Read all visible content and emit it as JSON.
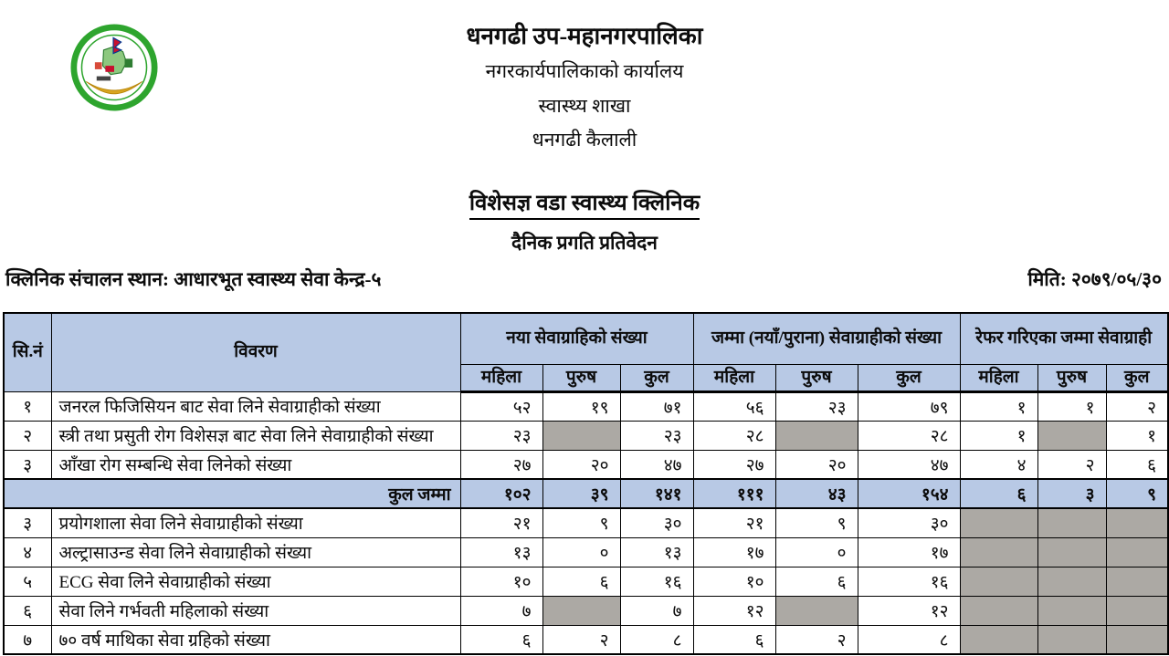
{
  "letterhead": {
    "org_name": "धनगढी उप-महानगरपालिका",
    "office_line": "नगरकार्यपालिकाको कार्यालय",
    "branch_line": "स्वास्थ्य शाखा",
    "place_line": "धनगढी कैलाली",
    "logo": "dhangadhi-sub-metropolitan-city-seal"
  },
  "report": {
    "title": "विशेसज्ञ वडा स्वास्थ्य क्लिनिक",
    "subtitle": "दैनिक प्रगति प्रतिवेदन",
    "clinic_location": "क्लिनिक संचालन स्थान: आधारभूत स्वास्थ्य सेवा केन्द्र-५",
    "date": "मिति: २०७९/०५/३०"
  },
  "table": {
    "colors": {
      "header_bg": "#b8c9e5",
      "total_row_bg": "#b8c9e5",
      "shaded_cell_bg": "#aca9a4",
      "border": "#000000"
    },
    "columns": {
      "sn": "सि.नं",
      "description": "विवरण",
      "groups": [
        {
          "label": "नया सेवाग्राहिको संख्या",
          "sub": [
            "महिला",
            "पुरुष",
            "कुल"
          ]
        },
        {
          "label": "जम्मा (नयाँ/पुराना) सेवाग्राहीको संख्या",
          "sub": [
            "महिला",
            "पुरुष",
            "कुल"
          ]
        },
        {
          "label": "रेफर गरिएका जम्मा सेवाग्राही",
          "sub": [
            "महिला",
            "पुरुष",
            "कुल"
          ]
        }
      ]
    },
    "rows_group1": [
      {
        "sn": "१",
        "description": "जनरल फिजिसियन बाट सेवा लिने सेवाग्राहीको संख्या",
        "values": [
          "५२",
          "१९",
          "७१",
          "५६",
          "२३",
          "७९",
          "१",
          "१",
          "२"
        ]
      },
      {
        "sn": "२",
        "description": "स्त्री तथा प्रसुती रोग विशेसज्ञ बाट सेवा लिने सेवाग्राहीको संख्या",
        "values": [
          "२३",
          null,
          "२३",
          "२८",
          null,
          "२८",
          "१",
          null,
          "१"
        ]
      },
      {
        "sn": "३",
        "description": "आँखा रोग सम्बन्धि सेवा लिनेको संख्या",
        "values": [
          "२७",
          "२०",
          "४७",
          "२७",
          "२०",
          "४७",
          "४",
          "२",
          "६"
        ]
      }
    ],
    "total_row": {
      "label": "कुल जम्मा",
      "values": [
        "१०२",
        "३९",
        "१४१",
        "१११",
        "४३",
        "१५४",
        "६",
        "३",
        "९"
      ]
    },
    "rows_group2": [
      {
        "sn": "३",
        "description": "प्रयोगशाला सेवा लिने सेवाग्राहीको संख्या",
        "values": [
          "२१",
          "९",
          "३०",
          "२१",
          "९",
          "३०",
          null,
          null,
          null
        ]
      },
      {
        "sn": "४",
        "description": "अल्ट्रासाउन्ड सेवा लिने सेवाग्राहीको संख्या",
        "values": [
          "१३",
          "०",
          "१३",
          "१७",
          "०",
          "१७",
          null,
          null,
          null
        ]
      },
      {
        "sn": "५",
        "description": "ECG सेवा लिने सेवाग्राहीको संख्या",
        "values": [
          "१०",
          "६",
          "१६",
          "१०",
          "६",
          "१६",
          null,
          null,
          null
        ]
      },
      {
        "sn": "६",
        "description": "सेवा लिने गर्भवती महिलाको संख्या",
        "values": [
          "७",
          null,
          "७",
          "१२",
          null,
          "१२",
          null,
          null,
          null
        ]
      },
      {
        "sn": "७",
        "description": "७० वर्ष माथिका सेवा ग्रहिको संख्या",
        "values": [
          "६",
          "२",
          "८",
          "६",
          "२",
          "८",
          null,
          null,
          null
        ]
      }
    ]
  }
}
